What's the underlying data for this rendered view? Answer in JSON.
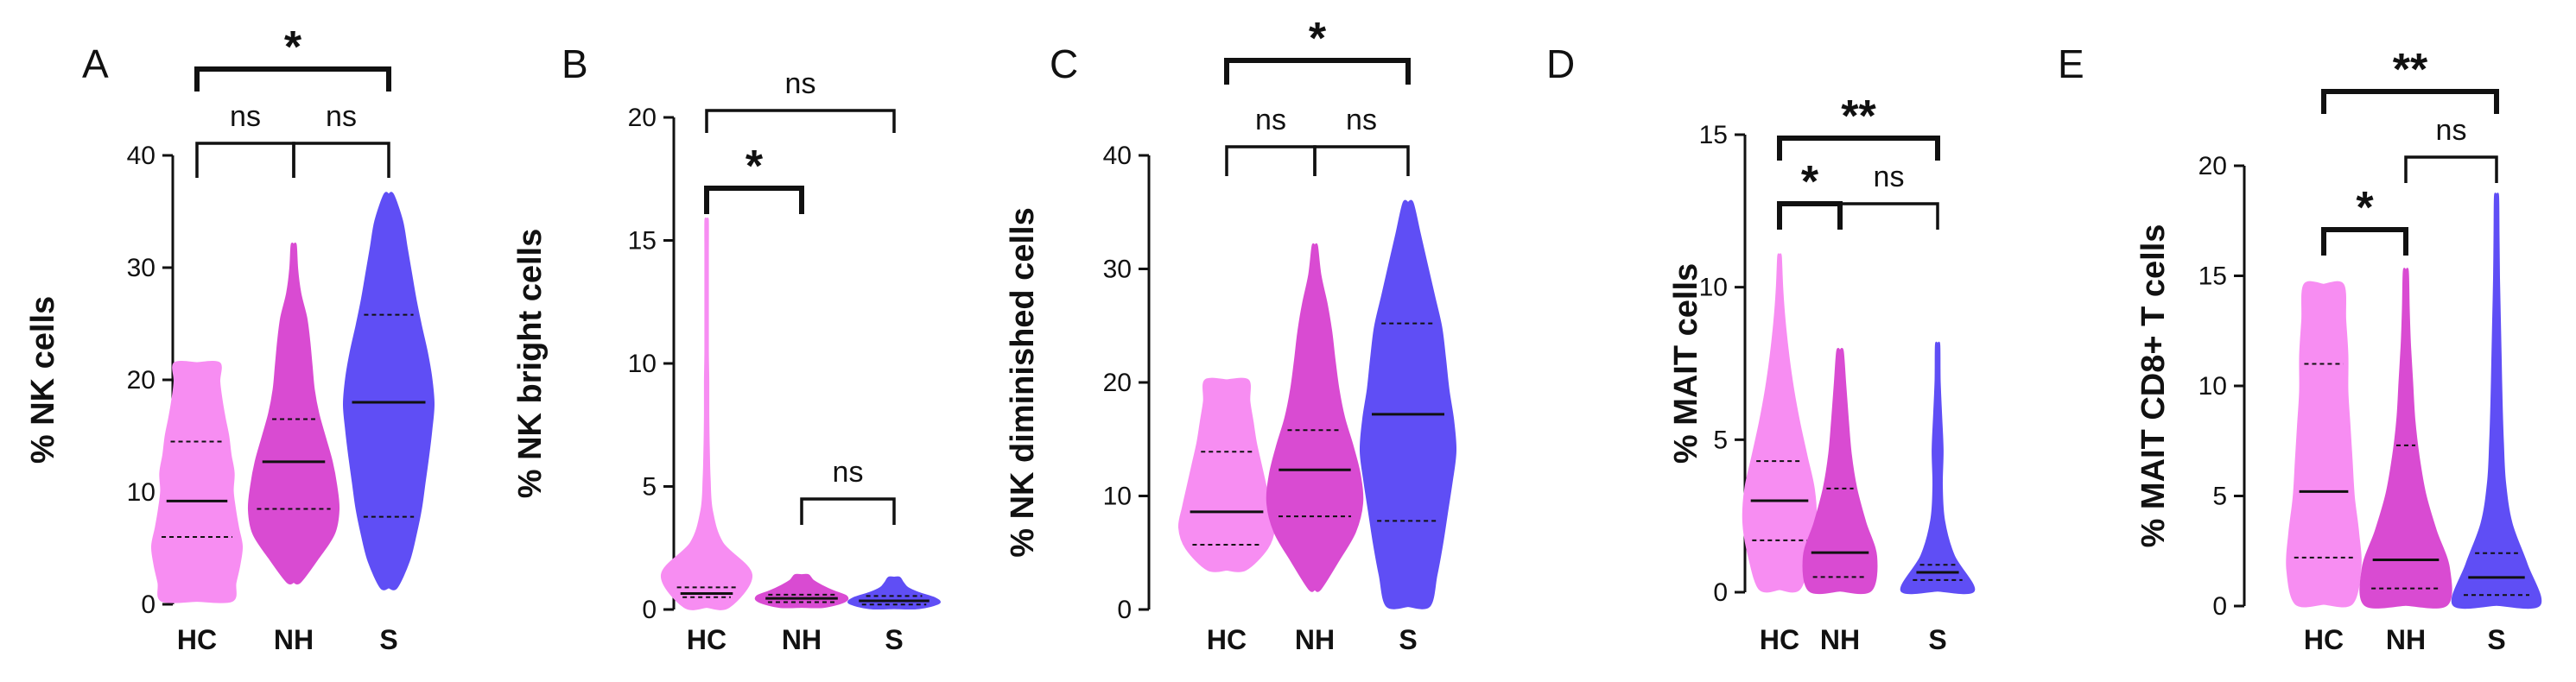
{
  "figure": {
    "colors": {
      "HC": "#f78df2",
      "NH": "#d94bd2",
      "S": "#5f4ef5"
    }
  },
  "chart_data": [
    {
      "type": "violin",
      "panel": "A",
      "ylabel": "% NK cells",
      "categories": [
        "HC",
        "NH",
        "S"
      ],
      "ylim": [
        0,
        40
      ],
      "yticks": [
        "0",
        "10",
        "20",
        "30",
        "40"
      ],
      "yticks_values": [
        0,
        10,
        20,
        30,
        40
      ],
      "series": [
        {
          "name": "HC",
          "min": 0.3,
          "max": 21.5,
          "q1": 6.0,
          "median": 9.2,
          "q3": 14.5,
          "profile": [
            0.78,
            0.86,
            0.95,
            1.0,
            0.92,
            0.85,
            0.8,
            0.82,
            0.75,
            0.7,
            0.62,
            0.55,
            0.5,
            0.5
          ]
        },
        {
          "name": "NH",
          "min": 2.0,
          "max": 32.0,
          "q1": 8.5,
          "median": 12.7,
          "q3": 16.5,
          "profile": [
            0.15,
            0.55,
            0.9,
            1.0,
            0.95,
            0.85,
            0.7,
            0.55,
            0.45,
            0.4,
            0.35,
            0.28,
            0.15,
            0.08,
            0.05
          ]
        },
        {
          "name": "S",
          "min": 1.5,
          "max": 36.5,
          "q1": 7.8,
          "median": 18.0,
          "q3": 25.8,
          "profile": [
            0.18,
            0.45,
            0.6,
            0.72,
            0.8,
            0.88,
            0.95,
            1.0,
            0.95,
            0.85,
            0.72,
            0.6,
            0.5,
            0.4,
            0.3,
            0.1
          ]
        }
      ],
      "comparisons": [
        {
          "from": "HC",
          "to": "NH",
          "label": "ns"
        },
        {
          "from": "NH",
          "to": "S",
          "label": "ns"
        },
        {
          "from": "HC",
          "to": "S",
          "label": "*"
        }
      ]
    },
    {
      "type": "violin",
      "panel": "B",
      "ylabel": "% NK bright cells",
      "categories": [
        "HC",
        "NH",
        "S"
      ],
      "ylim": [
        0,
        20
      ],
      "yticks": [
        "0",
        "5",
        "10",
        "15",
        "20"
      ],
      "yticks_values": [
        0,
        5,
        10,
        15,
        20
      ],
      "series": [
        {
          "name": "HC",
          "min": 0.1,
          "max": 15.8,
          "q1": 0.5,
          "median": 0.65,
          "q3": 0.9,
          "profile": [
            0.5,
            1.0,
            0.35,
            0.12,
            0.07,
            0.05,
            0.04,
            0.04,
            0.03,
            0.03,
            0.03,
            0.02,
            0.02
          ]
        },
        {
          "name": "NH",
          "min": 0.1,
          "max": 1.4,
          "q1": 0.3,
          "median": 0.45,
          "q3": 0.6,
          "profile": [
            0.5,
            0.95,
            1.0,
            0.7,
            0.45,
            0.25,
            0.15
          ]
        },
        {
          "name": "S",
          "min": 0.05,
          "max": 1.3,
          "q1": 0.2,
          "median": 0.35,
          "q3": 0.55,
          "profile": [
            0.55,
            1.0,
            0.9,
            0.55,
            0.3,
            0.2,
            0.12
          ]
        }
      ],
      "comparisons": [
        {
          "from": "HC",
          "to": "NH",
          "label": "*"
        },
        {
          "from": "NH",
          "to": "S",
          "label": "ns"
        },
        {
          "from": "HC",
          "to": "S",
          "label": "ns"
        }
      ]
    },
    {
      "type": "violin",
      "panel": "C",
      "ylabel": "% NK diminished cells",
      "categories": [
        "HC",
        "NH",
        "S"
      ],
      "ylim": [
        0,
        40
      ],
      "yticks": [
        "0",
        "10",
        "20",
        "30",
        "40"
      ],
      "yticks_values": [
        0,
        10,
        20,
        30,
        40
      ],
      "series": [
        {
          "name": "HC",
          "min": 3.5,
          "max": 20.2,
          "q1": 5.7,
          "median": 8.6,
          "q3": 13.9,
          "profile": [
            0.4,
            0.85,
            1.0,
            0.92,
            0.82,
            0.72,
            0.62,
            0.55,
            0.48,
            0.45
          ]
        },
        {
          "name": "NH",
          "min": 1.8,
          "max": 32.0,
          "q1": 8.2,
          "median": 12.3,
          "q3": 15.8,
          "profile": [
            0.12,
            0.5,
            0.85,
            1.0,
            0.95,
            0.8,
            0.62,
            0.5,
            0.42,
            0.35,
            0.25,
            0.12,
            0.05
          ]
        },
        {
          "name": "S",
          "min": 0.3,
          "max": 35.8,
          "q1": 7.8,
          "median": 17.2,
          "q3": 25.2,
          "profile": [
            0.45,
            0.6,
            0.72,
            0.82,
            0.92,
            1.0,
            0.95,
            0.85,
            0.78,
            0.7,
            0.55,
            0.4,
            0.25,
            0.1
          ]
        }
      ],
      "comparisons": [
        {
          "from": "HC",
          "to": "NH",
          "label": "ns"
        },
        {
          "from": "NH",
          "to": "S",
          "label": "ns"
        },
        {
          "from": "HC",
          "to": "S",
          "label": "*"
        }
      ]
    },
    {
      "type": "violin",
      "panel": "D",
      "ylabel": "% MAIT cells",
      "categories": [
        "HC",
        "NH",
        "S"
      ],
      "ylim": [
        0,
        15
      ],
      "yticks": [
        "0",
        "5",
        "10",
        "15"
      ],
      "yticks_values": [
        0,
        5,
        10,
        15
      ],
      "series": [
        {
          "name": "HC",
          "min": 0.1,
          "max": 11.0,
          "q1": 1.7,
          "median": 3.0,
          "q3": 4.3,
          "profile": [
            0.55,
            0.85,
            1.0,
            0.95,
            0.75,
            0.55,
            0.38,
            0.25,
            0.15,
            0.08,
            0.04
          ]
        },
        {
          "name": "NH",
          "min": 0.05,
          "max": 7.9,
          "q1": 0.5,
          "median": 1.3,
          "q3": 3.4,
          "profile": [
            0.85,
            1.0,
            0.7,
            0.45,
            0.3,
            0.22,
            0.15,
            0.08
          ]
        },
        {
          "name": "S",
          "min": 0.05,
          "max": 8.1,
          "q1": 0.4,
          "median": 0.65,
          "q3": 0.9,
          "profile": [
            1.0,
            0.45,
            0.18,
            0.12,
            0.14,
            0.1,
            0.06,
            0.05
          ]
        }
      ],
      "comparisons": [
        {
          "from": "HC",
          "to": "NH",
          "label": "*"
        },
        {
          "from": "NH",
          "to": "S",
          "label": "ns"
        },
        {
          "from": "HC",
          "to": "S",
          "label": "**"
        }
      ]
    },
    {
      "type": "violin",
      "panel": "E",
      "ylabel": "% MAIT CD8+ T cells",
      "categories": [
        "HC",
        "NH",
        "S"
      ],
      "ylim": [
        0,
        20
      ],
      "yticks": [
        "0",
        "5",
        "10",
        "15",
        "20"
      ],
      "yticks_values": [
        0,
        5,
        10,
        15,
        20
      ],
      "series": [
        {
          "name": "HC",
          "min": 0.1,
          "max": 14.6,
          "q1": 2.2,
          "median": 5.2,
          "q3": 11.0,
          "profile": [
            0.65,
            0.85,
            0.8,
            0.7,
            0.65,
            0.6,
            0.55,
            0.55,
            0.5,
            0.45
          ]
        },
        {
          "name": "NH",
          "min": 0.05,
          "max": 15.2,
          "q1": 0.8,
          "median": 2.1,
          "q3": 7.3,
          "profile": [
            0.95,
            1.0,
            0.7,
            0.45,
            0.3,
            0.2,
            0.15,
            0.1,
            0.07,
            0.05
          ]
        },
        {
          "name": "S",
          "min": 0.05,
          "max": 18.6,
          "q1": 0.5,
          "median": 1.3,
          "q3": 2.4,
          "profile": [
            1.0,
            0.7,
            0.35,
            0.2,
            0.15,
            0.12,
            0.1,
            0.08,
            0.06,
            0.05,
            0.04
          ]
        }
      ],
      "comparisons": [
        {
          "from": "HC",
          "to": "NH",
          "label": "*"
        },
        {
          "from": "NH",
          "to": "S",
          "label": "ns"
        },
        {
          "from": "HC",
          "to": "S",
          "label": "**"
        }
      ]
    }
  ]
}
